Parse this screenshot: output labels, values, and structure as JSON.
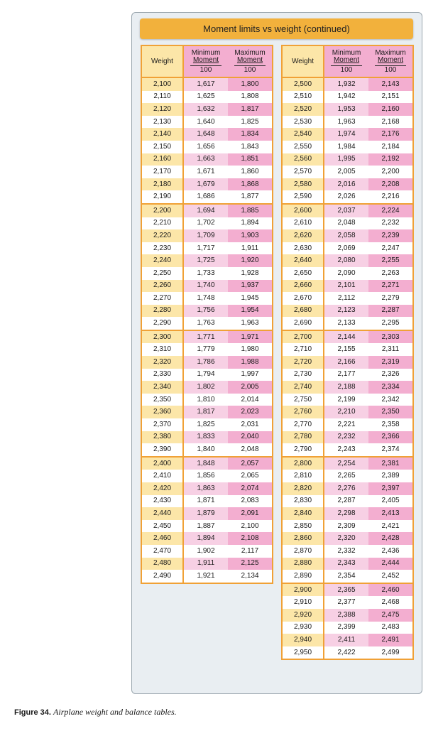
{
  "title": "Moment limits vs weight (continued)",
  "headers": {
    "weight": "Weight",
    "min_line1": "Minimum",
    "min_line2": "Moment",
    "max_line1": "Maximum",
    "max_line2": "Moment",
    "divisor": "100"
  },
  "left_table": [
    [
      "2,100",
      "1,617",
      "1,800"
    ],
    [
      "2,110",
      "1,625",
      "1,808"
    ],
    [
      "2,120",
      "1,632",
      "1,817"
    ],
    [
      "2,130",
      "1,640",
      "1,825"
    ],
    [
      "2,140",
      "1,648",
      "1,834"
    ],
    [
      "2,150",
      "1,656",
      "1,843"
    ],
    [
      "2,160",
      "1,663",
      "1,851"
    ],
    [
      "2,170",
      "1,671",
      "1,860"
    ],
    [
      "2,180",
      "1,679",
      "1,868"
    ],
    [
      "2,190",
      "1,686",
      "1,877"
    ],
    [
      "2,200",
      "1,694",
      "1,885"
    ],
    [
      "2,210",
      "1,702",
      "1,894"
    ],
    [
      "2,220",
      "1,709",
      "1,903"
    ],
    [
      "2,230",
      "1,717",
      "1,911"
    ],
    [
      "2,240",
      "1,725",
      "1,920"
    ],
    [
      "2,250",
      "1,733",
      "1,928"
    ],
    [
      "2,260",
      "1,740",
      "1,937"
    ],
    [
      "2,270",
      "1,748",
      "1,945"
    ],
    [
      "2,280",
      "1,756",
      "1,954"
    ],
    [
      "2,290",
      "1,763",
      "1,963"
    ],
    [
      "2,300",
      "1,771",
      "1,971"
    ],
    [
      "2,310",
      "1,779",
      "1,980"
    ],
    [
      "2,320",
      "1,786",
      "1,988"
    ],
    [
      "2,330",
      "1,794",
      "1,997"
    ],
    [
      "2,340",
      "1,802",
      "2,005"
    ],
    [
      "2,350",
      "1,810",
      "2,014"
    ],
    [
      "2,360",
      "1,817",
      "2,023"
    ],
    [
      "2,370",
      "1,825",
      "2,031"
    ],
    [
      "2,380",
      "1,833",
      "2,040"
    ],
    [
      "2,390",
      "1,840",
      "2,048"
    ],
    [
      "2,400",
      "1,848",
      "2,057"
    ],
    [
      "2,410",
      "1,856",
      "2,065"
    ],
    [
      "2,420",
      "1,863",
      "2,074"
    ],
    [
      "2,430",
      "1,871",
      "2,083"
    ],
    [
      "2,440",
      "1,879",
      "2,091"
    ],
    [
      "2,450",
      "1,887",
      "2,100"
    ],
    [
      "2,460",
      "1,894",
      "2,108"
    ],
    [
      "2,470",
      "1,902",
      "2,117"
    ],
    [
      "2,480",
      "1,911",
      "2,125"
    ],
    [
      "2,490",
      "1,921",
      "2,134"
    ]
  ],
  "right_table": [
    [
      "2,500",
      "1,932",
      "2,143"
    ],
    [
      "2,510",
      "1,942",
      "2,151"
    ],
    [
      "2,520",
      "1,953",
      "2,160"
    ],
    [
      "2,530",
      "1,963",
      "2,168"
    ],
    [
      "2,540",
      "1,974",
      "2,176"
    ],
    [
      "2,550",
      "1,984",
      "2,184"
    ],
    [
      "2,560",
      "1,995",
      "2,192"
    ],
    [
      "2,570",
      "2,005",
      "2,200"
    ],
    [
      "2,580",
      "2,016",
      "2,208"
    ],
    [
      "2,590",
      "2,026",
      "2,216"
    ],
    [
      "2,600",
      "2,037",
      "2,224"
    ],
    [
      "2,610",
      "2,048",
      "2,232"
    ],
    [
      "2,620",
      "2,058",
      "2,239"
    ],
    [
      "2,630",
      "2,069",
      "2,247"
    ],
    [
      "2,640",
      "2,080",
      "2,255"
    ],
    [
      "2,650",
      "2,090",
      "2,263"
    ],
    [
      "2,660",
      "2,101",
      "2,271"
    ],
    [
      "2,670",
      "2,112",
      "2,279"
    ],
    [
      "2,680",
      "2,123",
      "2,287"
    ],
    [
      "2,690",
      "2,133",
      "2,295"
    ],
    [
      "2,700",
      "2,144",
      "2,303"
    ],
    [
      "2,710",
      "2,155",
      "2,311"
    ],
    [
      "2,720",
      "2,166",
      "2,319"
    ],
    [
      "2,730",
      "2,177",
      "2,326"
    ],
    [
      "2,740",
      "2,188",
      "2,334"
    ],
    [
      "2,750",
      "2,199",
      "2,342"
    ],
    [
      "2,760",
      "2,210",
      "2,350"
    ],
    [
      "2,770",
      "2,221",
      "2,358"
    ],
    [
      "2,780",
      "2,232",
      "2,366"
    ],
    [
      "2,790",
      "2,243",
      "2,374"
    ],
    [
      "2,800",
      "2,254",
      "2,381"
    ],
    [
      "2,810",
      "2,265",
      "2,389"
    ],
    [
      "2,820",
      "2,276",
      "2,397"
    ],
    [
      "2,830",
      "2,287",
      "2,405"
    ],
    [
      "2,840",
      "2,298",
      "2,413"
    ],
    [
      "2,850",
      "2,309",
      "2,421"
    ],
    [
      "2,860",
      "2,320",
      "2,428"
    ],
    [
      "2,870",
      "2,332",
      "2,436"
    ],
    [
      "2,880",
      "2,343",
      "2,444"
    ],
    [
      "2,890",
      "2,354",
      "2,452"
    ],
    [
      "2,900",
      "2,365",
      "2,460"
    ],
    [
      "2,910",
      "2,377",
      "2,468"
    ],
    [
      "2,920",
      "2,388",
      "2,475"
    ],
    [
      "2,930",
      "2,399",
      "2,483"
    ],
    [
      "2,940",
      "2,411",
      "2,491"
    ],
    [
      "2,950",
      "2,422",
      "2,499"
    ]
  ],
  "caption": {
    "label": "Figure 34.",
    "text": "Airplane weight and balance tables."
  },
  "colors": {
    "weight_highlight": "#fce6a8",
    "min_highlight": "#f7d0e4",
    "max_highlight": "#f3aed0",
    "border": "#f0a136",
    "title_bar": "#f2b13c"
  }
}
